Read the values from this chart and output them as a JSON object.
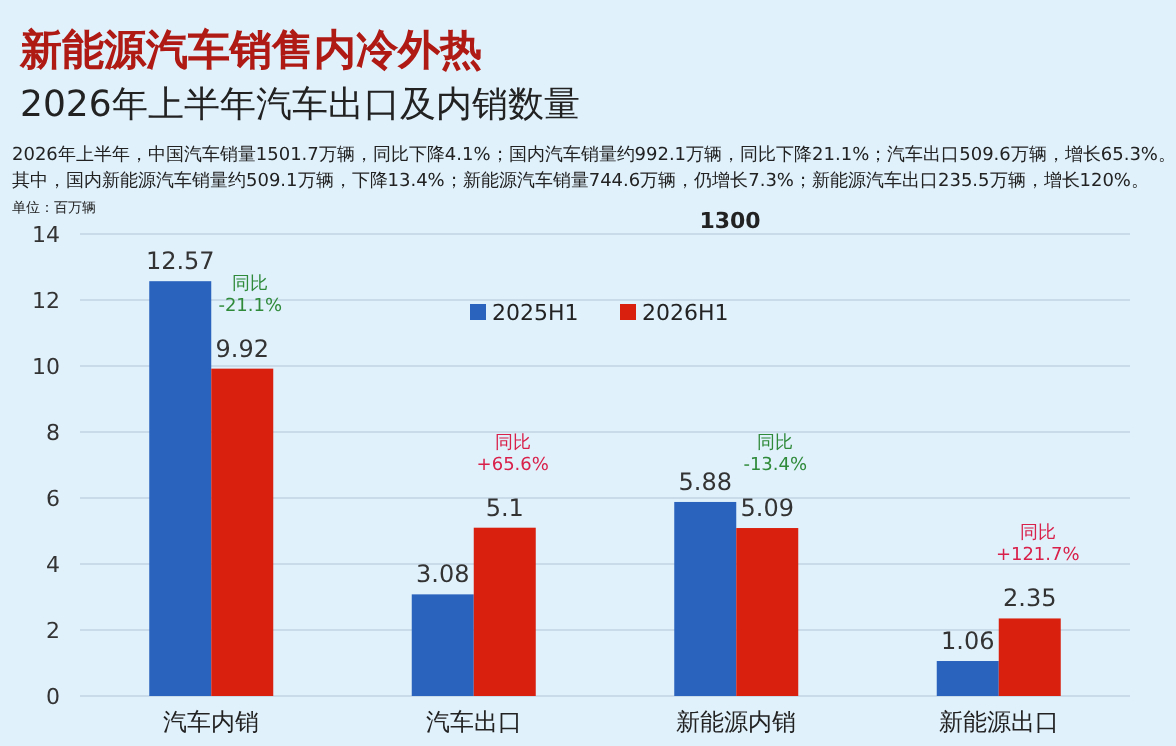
{
  "chart_data": {
    "type": "bar",
    "title": "新能源汽车销售内冷外热",
    "subtitle": "2026年上半年汽车出口及内销数量",
    "categories": [
      "汽车内销",
      "汽车出口",
      "新能源内销",
      "新能源出口"
    ],
    "series": [
      {
        "name": "2025H1",
        "color": "#2a63bd",
        "values": [
          12.57,
          3.08,
          5.88,
          1.06
        ]
      },
      {
        "name": "2026H1",
        "color": "#d9200f",
        "values": [
          9.92,
          5.1,
          5.09,
          2.35
        ]
      }
    ],
    "ylim": [
      0,
      14
    ],
    "yticks": [
      0,
      2,
      4,
      6,
      8,
      10,
      12,
      14
    ],
    "grid": "y",
    "legend": "top",
    "data_labels": true,
    "annotations": [
      "2026年上半年，中国汽车销量1501.7万辆，同比下降4.1%；国内汽车销量约992.1万辆，同比下降21.1%；汽车出口509.6万辆，增长65.3%。",
      "其中，国内新能源汽车销量约509.1万辆，下降13.4%；新能源汽车销量744.6万辆，仍增长7.3%；新能源汽车出口235.5万辆，增长120%。",
      "单位：百万辆",
      "1300",
      {
        "text": "同比 -21.1%",
        "x": "汽车内销",
        "y": 9.92
      },
      {
        "text": "同比 +65.6%",
        "x": "汽车出口",
        "y": 5.1
      },
      {
        "text": "同比 -13.4%",
        "x": "新能源内销",
        "y": 5.09
      },
      {
        "text": "同比 +121.7%",
        "x": "新能源出口",
        "y": 2.35
      }
    ]
  }
}
